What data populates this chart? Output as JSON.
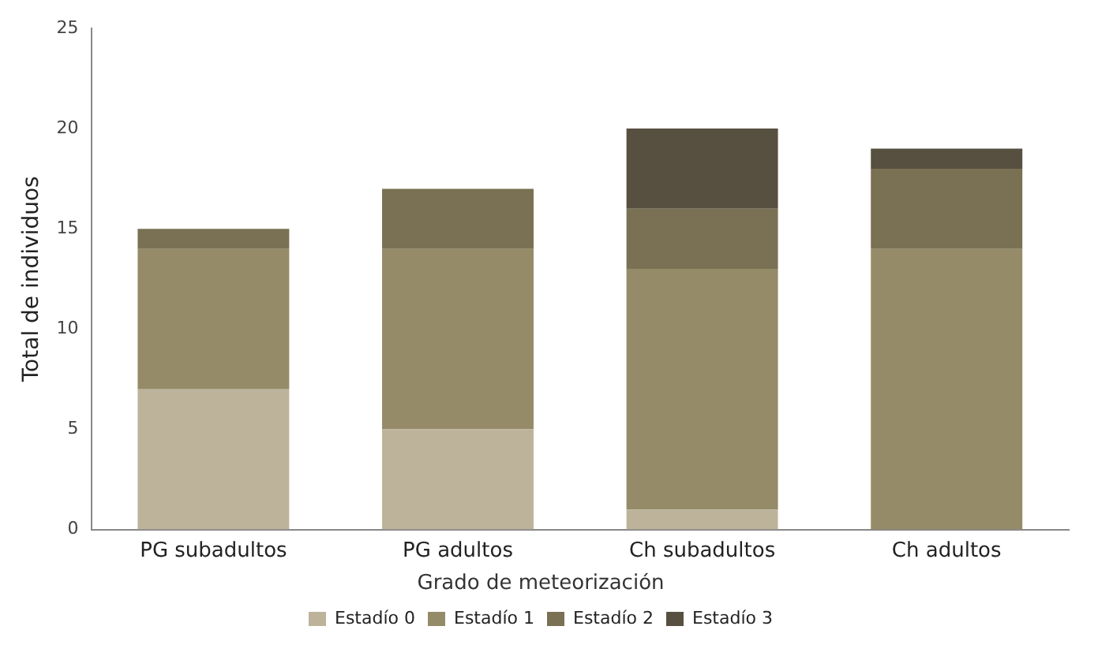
{
  "chart_data": {
    "type": "bar",
    "ylabel": "Total de individuos",
    "legend_title": "Grado de meteorización",
    "categories": [
      "PG subadultos",
      "PG adultos",
      "Ch subadultos",
      "Ch adultos"
    ],
    "stacked": true,
    "ylim": [
      0,
      25
    ],
    "yticks": [
      0,
      5,
      10,
      15,
      20,
      25
    ],
    "grid": false,
    "legend": "bottom",
    "series": [
      {
        "name": "Estadío 0",
        "color": "#bdb39b",
        "values": [
          7,
          5,
          1,
          0
        ]
      },
      {
        "name": "Estadío 1",
        "color": "#958b68",
        "values": [
          7,
          9,
          12,
          14
        ]
      },
      {
        "name": "Estadío 2",
        "color": "#7a7053",
        "values": [
          1,
          3,
          3,
          4
        ]
      },
      {
        "name": "Estadío 3",
        "color": "#575040",
        "values": [
          0,
          0,
          4,
          1
        ]
      }
    ]
  }
}
